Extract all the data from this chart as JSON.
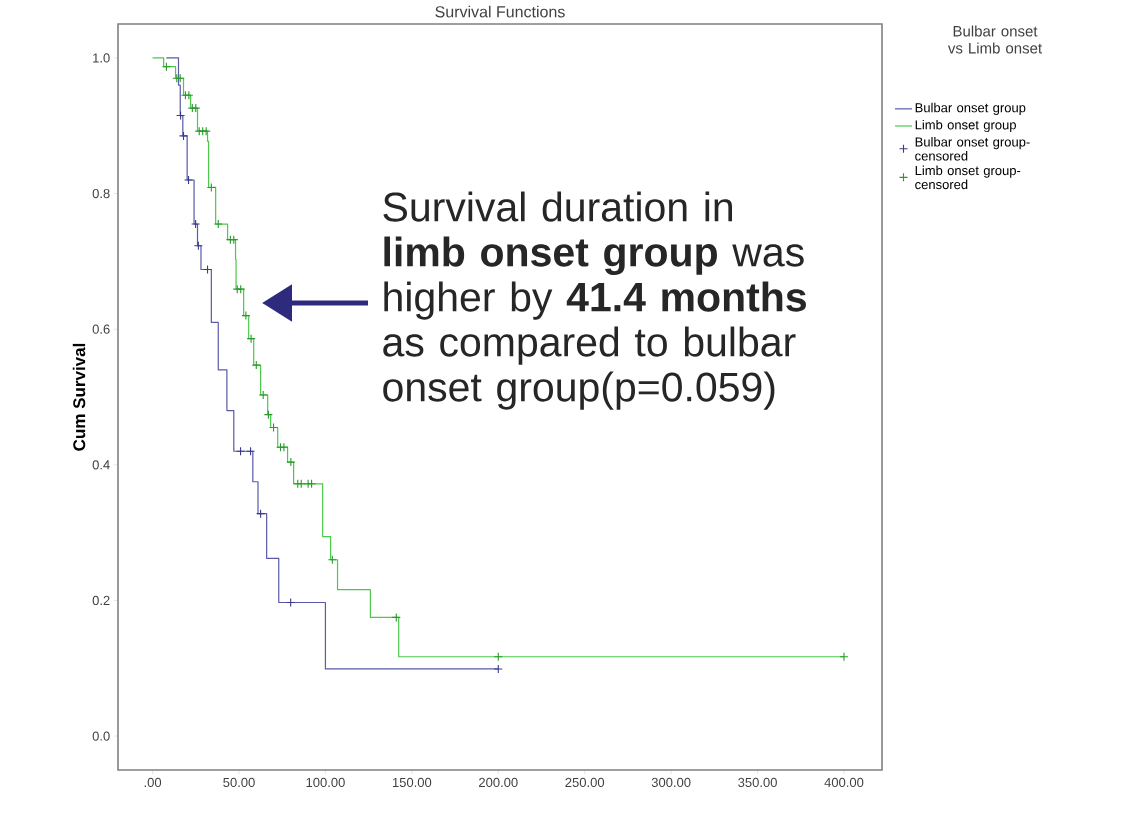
{
  "chart_data": {
    "type": "step",
    "title": "Survival Functions",
    "ylabel": "Cum Survival",
    "legend_title": "Bulbar onset vs Limb onset",
    "legend": "right",
    "xlim": [
      -20,
      422
    ],
    "ylim": [
      -0.05,
      1.05
    ],
    "xticks": [
      {
        "value": 0,
        "label": ".00"
      },
      {
        "value": 50,
        "label": "50.00"
      },
      {
        "value": 100,
        "label": "100.00"
      },
      {
        "value": 150,
        "label": "150.00"
      },
      {
        "value": 200,
        "label": "200.00"
      },
      {
        "value": 250,
        "label": "250.00"
      },
      {
        "value": 300,
        "label": "300.00"
      },
      {
        "value": 350,
        "label": "350.00"
      },
      {
        "value": 400,
        "label": "400.00"
      }
    ],
    "yticks": [
      {
        "value": 0,
        "label": "0.0"
      },
      {
        "value": 0.2,
        "label": "0.2"
      },
      {
        "value": 0.4,
        "label": "0.4"
      },
      {
        "value": 0.6,
        "label": "0.6"
      },
      {
        "value": 0.8,
        "label": "0.8"
      },
      {
        "value": 1.0,
        "label": "1.0"
      }
    ],
    "annotations": [
      "Survival duration in **limb onset group** was higher by **41.4 months** as compared to bulbar onset group(p=0.059)"
    ],
    "series": [
      {
        "name": "Bulbar onset group",
        "color": "#5a5aa8",
        "x": [
          8,
          15,
          16,
          17.5,
          20,
          24,
          26,
          28,
          34,
          38,
          43,
          47,
          58,
          61,
          66,
          73,
          100,
          200
        ],
        "values": [
          1.0,
          0.96,
          0.915,
          0.885,
          0.82,
          0.755,
          0.723,
          0.688,
          0.61,
          0.54,
          0.48,
          0.42,
          0.375,
          0.328,
          0.262,
          0.197,
          0.099,
          0.099
        ]
      },
      {
        "name": "Limb onset group",
        "color": "#4cc84c",
        "x": [
          0,
          6.4,
          13.3,
          17.9,
          22,
          26,
          31.8,
          32.4,
          36.5,
          43.4,
          48,
          48.3,
          52.7,
          55.6,
          58.5,
          62.5,
          66.6,
          68.3,
          72.4,
          78.1,
          81.6,
          98.4,
          103,
          107,
          126,
          142.4,
          400
        ],
        "values": [
          1.0,
          0.987,
          0.97,
          0.945,
          0.926,
          0.892,
          0.877,
          0.809,
          0.755,
          0.732,
          0.703,
          0.659,
          0.62,
          0.586,
          0.547,
          0.503,
          0.474,
          0.455,
          0.426,
          0.404,
          0.372,
          0.294,
          0.26,
          0.216,
          0.175,
          0.117,
          0.117
        ]
      },
      {
        "name": "Bulbar onset group-censored",
        "type": "scatter",
        "marker": "cross",
        "color": "#3a3a8c",
        "x": [
          16.2,
          17.9,
          20.8,
          24.9,
          26.5,
          31.8,
          50.9,
          56.7,
          62.5,
          79.9,
          200
        ],
        "values": [
          0.915,
          0.885,
          0.82,
          0.755,
          0.723,
          0.688,
          0.42,
          0.42,
          0.328,
          0.197,
          0.099
        ]
      },
      {
        "name": "Limb onset group-censored",
        "type": "scatter",
        "marker": "cross",
        "color": "#2a9a2a",
        "x": [
          8,
          14,
          16,
          19,
          21,
          23,
          25,
          27,
          29,
          31,
          34,
          38,
          45,
          47,
          49,
          51,
          54,
          57,
          60,
          64,
          67,
          70,
          74,
          76,
          80,
          84,
          86,
          90,
          92,
          104,
          141,
          200,
          400
        ],
        "values": [
          0.987,
          0.97,
          0.97,
          0.945,
          0.945,
          0.926,
          0.926,
          0.892,
          0.892,
          0.892,
          0.809,
          0.755,
          0.732,
          0.732,
          0.659,
          0.659,
          0.62,
          0.586,
          0.547,
          0.503,
          0.474,
          0.455,
          0.426,
          0.426,
          0.404,
          0.372,
          0.372,
          0.372,
          0.372,
          0.26,
          0.175,
          0.117,
          0.117
        ]
      }
    ]
  }
}
